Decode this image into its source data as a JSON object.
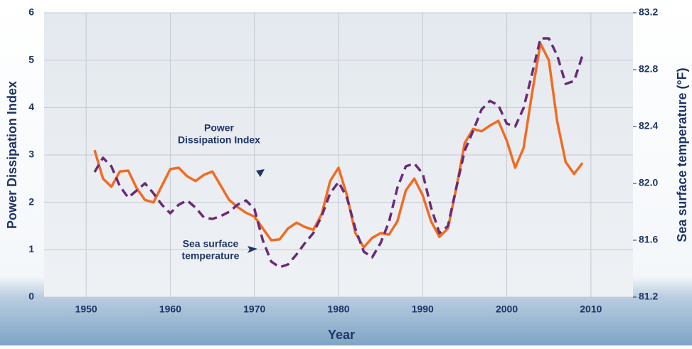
{
  "chart_data": {
    "type": "line",
    "x_label": "Year",
    "y_label": "Power Dissipation Index",
    "y2_label": "Sea surface temperature (°F)",
    "x": [
      1951,
      1952,
      1953,
      1954,
      1955,
      1956,
      1957,
      1958,
      1959,
      1960,
      1961,
      1962,
      1963,
      1964,
      1965,
      1966,
      1967,
      1968,
      1969,
      1970,
      1971,
      1972,
      1973,
      1974,
      1975,
      1976,
      1977,
      1978,
      1979,
      1980,
      1981,
      1982,
      1983,
      1984,
      1985,
      1986,
      1987,
      1988,
      1989,
      1990,
      1991,
      1992,
      1993,
      1994,
      1995,
      1996,
      1997,
      1998,
      1999,
      2000,
      2001,
      2002,
      2003,
      2004,
      2005,
      2006,
      2007,
      2008,
      2009
    ],
    "series": [
      {
        "color": "#f26b21",
        "axis": "y",
        "dash": false,
        "values": [
          3.1,
          2.5,
          2.33,
          2.65,
          2.67,
          2.3,
          2.05,
          2.0,
          2.35,
          2.7,
          2.73,
          2.55,
          2.45,
          2.58,
          2.65,
          2.35,
          2.05,
          1.9,
          1.78,
          1.7,
          1.45,
          1.2,
          1.22,
          1.45,
          1.57,
          1.48,
          1.42,
          1.75,
          2.45,
          2.73,
          2.15,
          1.35,
          1.05,
          1.25,
          1.35,
          1.32,
          1.6,
          2.25,
          2.5,
          2.15,
          1.6,
          1.27,
          1.45,
          2.3,
          3.25,
          3.55,
          3.5,
          3.62,
          3.72,
          3.3,
          2.73,
          3.15,
          4.3,
          5.35,
          5.0,
          3.7,
          2.85,
          2.6,
          2.83
        ]
      },
      {
        "color": "#6b2a7a",
        "axis": "y2",
        "dash": true,
        "values": [
          82.08,
          82.18,
          82.12,
          81.98,
          81.9,
          81.95,
          82.0,
          81.93,
          81.85,
          81.79,
          81.85,
          81.88,
          81.83,
          81.76,
          81.75,
          81.77,
          81.8,
          81.85,
          81.88,
          81.82,
          81.6,
          81.45,
          81.41,
          81.43,
          81.5,
          81.58,
          81.65,
          81.77,
          81.93,
          82.01,
          81.9,
          81.68,
          81.52,
          81.48,
          81.58,
          81.73,
          81.97,
          82.12,
          82.14,
          82.07,
          81.83,
          81.65,
          81.7,
          81.97,
          82.23,
          82.37,
          82.52,
          82.58,
          82.55,
          82.42,
          82.4,
          82.53,
          82.77,
          83.02,
          83.02,
          82.9,
          82.7,
          82.72,
          82.9
        ]
      }
    ],
    "annotations": [
      {
        "lines": [
          "Power",
          "Dissipation Index"
        ]
      },
      {
        "lines": [
          "Sea surface",
          "temperature"
        ]
      }
    ],
    "xlim": [
      1945,
      2015
    ],
    "xticks": [
      1950,
      1960,
      1970,
      1980,
      1990,
      2000,
      2010
    ],
    "ylim": [
      0,
      6
    ],
    "yticks": [
      0,
      1,
      2,
      3,
      4,
      5,
      6
    ],
    "y2lim": [
      81.2,
      83.2
    ],
    "y2ticks": [
      81.2,
      81.6,
      {
        "value": 82.0,
        "label": "82.0"
      },
      82.4,
      82.8,
      83.2
    ],
    "grid": true
  }
}
